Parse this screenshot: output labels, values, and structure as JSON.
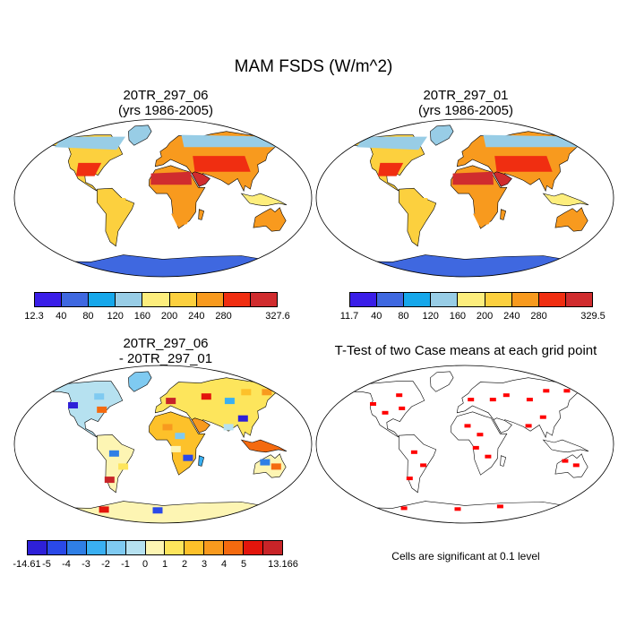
{
  "title": "MAM FSDS (W/m^2)",
  "panels": [
    {
      "title_line1": "20TR_297_06",
      "title_line2": "(yrs 1986-2005)"
    },
    {
      "title_line1": "20TR_297_01",
      "title_line2": "(yrs 1986-2005)"
    },
    {
      "title_line1": "20TR_297_06",
      "title_line2": "- 20TR_297_01"
    },
    {
      "title_line1": "T-Test of two Case means at each grid point",
      "title_line2": ""
    }
  ],
  "colorbars": {
    "c1": {
      "colors": [
        "#3a1ee8",
        "#3f68e0",
        "#16a7ea",
        "#98cde6",
        "#fdee7d",
        "#fcd03e",
        "#f89a1e",
        "#f02e11",
        "#d02c2e"
      ],
      "labels": [
        "12.3",
        "40",
        "80",
        "120",
        "160",
        "200",
        "240",
        "280",
        "327.6"
      ]
    },
    "c2": {
      "colors": [
        "#3a1ee8",
        "#3f68e0",
        "#16a7ea",
        "#98cde6",
        "#fdee7d",
        "#fcd03e",
        "#f89a1e",
        "#f02e11",
        "#d02c2e"
      ],
      "labels": [
        "11.7",
        "40",
        "80",
        "120",
        "160",
        "200",
        "240",
        "280",
        "329.5"
      ]
    },
    "diff": {
      "colors": [
        "#2e20d8",
        "#2a49e8",
        "#2f7fe6",
        "#3ab0f2",
        "#7fcaf1",
        "#b6e1f0",
        "#fdf5b3",
        "#fde55c",
        "#fdc12a",
        "#f89a1e",
        "#f46a0f",
        "#e3150c",
        "#c82428"
      ],
      "labels": [
        "-14.61",
        "-5",
        "-4",
        "-3",
        "-2",
        "-1",
        "0",
        "1",
        "2",
        "3",
        "4",
        "5",
        "13.166"
      ]
    }
  },
  "colors": {
    "ocean": "#ffffff",
    "significance": "#ff0000",
    "coast": "#000000"
  },
  "note": "Cells are significant at 0.1 level"
}
